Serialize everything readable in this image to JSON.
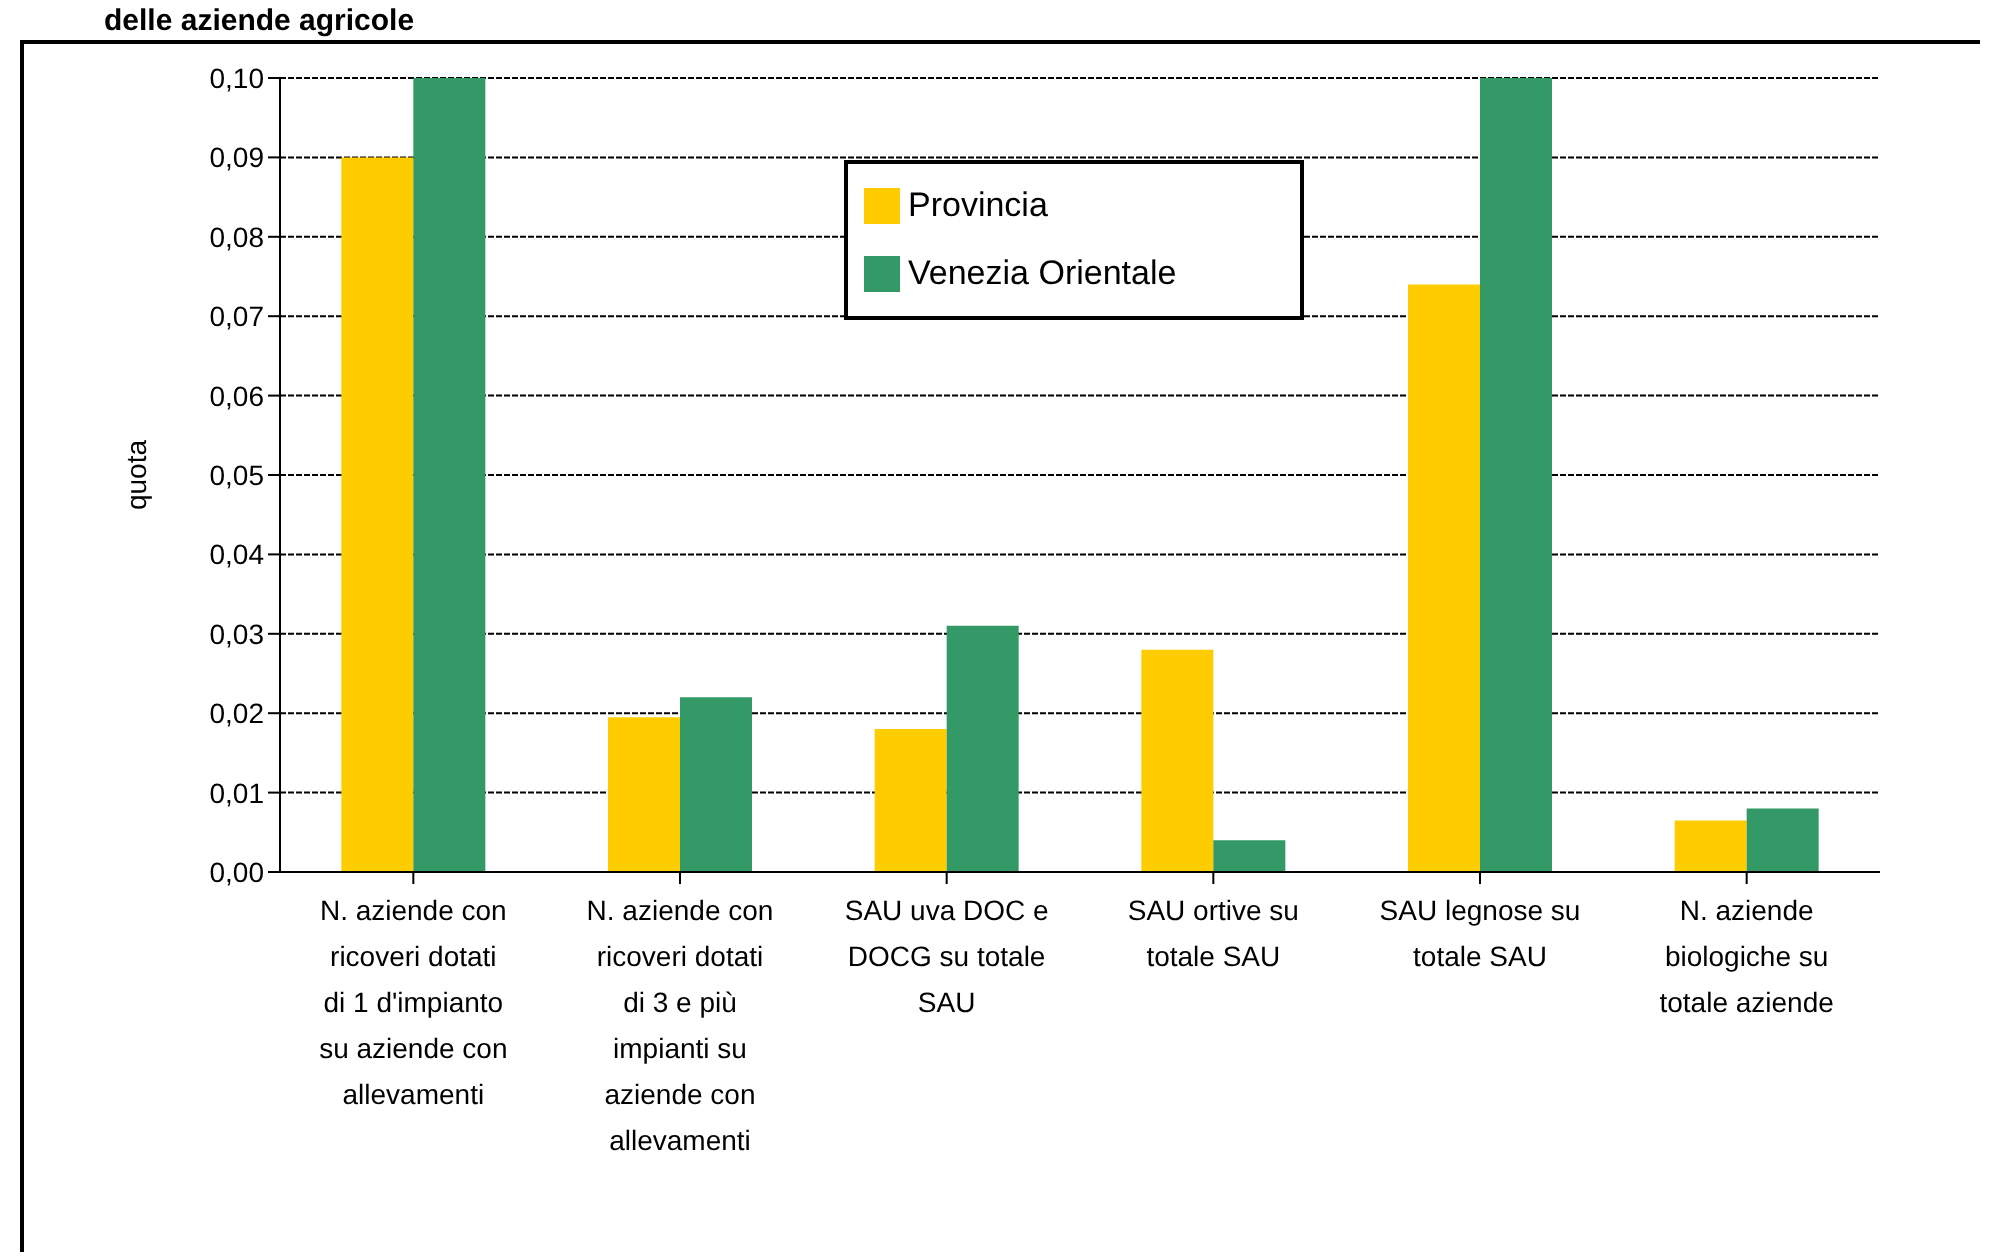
{
  "chart_data": {
    "type": "bar",
    "title": "delle aziende agricole",
    "ylabel": "quota",
    "categories": [
      "N. aziende con ricoveri dotati di 1 d'impianto su aziende con allevamenti",
      "N. aziende con ricoveri dotati di 3 e più impianti su aziende con allevamenti",
      "SAU uva DOC e DOCG su totale SAU",
      "SAU ortive su totale SAU",
      "SAU legnose su totale SAU",
      "N. aziende biologiche su totale aziende"
    ],
    "series": [
      {
        "name": "Provincia",
        "color": "#ffcc00",
        "values": [
          0.09,
          0.0195,
          0.018,
          0.028,
          0.074,
          0.0065
        ]
      },
      {
        "name": "Venezia Orientale",
        "color": "#339966",
        "values": [
          0.1,
          0.022,
          0.031,
          0.004,
          0.1,
          0.008
        ]
      }
    ],
    "ylim": [
      0,
      0.1
    ],
    "yticks": [
      {
        "value": 0,
        "label": "0,00"
      },
      {
        "value": 0.01,
        "label": "0,01"
      },
      {
        "value": 0.02,
        "label": "0,02"
      },
      {
        "value": 0.03,
        "label": "0,03"
      },
      {
        "value": 0.04,
        "label": "0,04"
      },
      {
        "value": 0.05,
        "label": "0,05"
      },
      {
        "value": 0.06,
        "label": "0,06"
      },
      {
        "value": 0.07,
        "label": "0,07"
      },
      {
        "value": 0.08,
        "label": "0,08"
      },
      {
        "value": 0.09,
        "label": "0,09"
      },
      {
        "value": 0.1,
        "label": "0,10"
      }
    ],
    "grid": "y",
    "legend": "top"
  }
}
